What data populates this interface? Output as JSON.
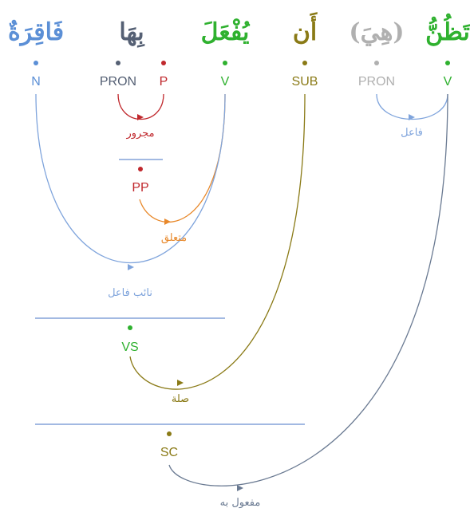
{
  "colors": {
    "noun": "#5b8fd6",
    "pronoun": "#556074",
    "preposition": "#c0282d",
    "verb": "#2fb12f",
    "subordinate": "#8a7a16",
    "hidden": "#b0b0b0",
    "edge_fail": "#7fa4dc",
    "edge_majrur": "#c0282d",
    "edge_mutaallaq": "#e8882a",
    "edge_naib": "#7fa4dc",
    "edge_sila": "#8a7a16",
    "edge_maful": "#6a7a92",
    "bar": "#6a8fd0"
  },
  "words": [
    {
      "id": "w1",
      "text": "تَظُنُّ",
      "tag": "V",
      "color": "verb"
    },
    {
      "id": "w2",
      "text": "(هِيَ)",
      "tag": "PRON",
      "color": "hidden"
    },
    {
      "id": "w3",
      "text": "أَن",
      "tag": "SUB",
      "color": "subordinate"
    },
    {
      "id": "w4",
      "text": "يُفْعَلَ",
      "tag": "V",
      "color": "verb"
    },
    {
      "id": "w5",
      "text": "بِهَا",
      "tag_p": "P",
      "tag_pron": "PRON",
      "color_p": "preposition",
      "color_pron": "pronoun"
    },
    {
      "id": "w6",
      "text": "فَاقِرَةٌ",
      "tag": "N",
      "color": "noun"
    }
  ],
  "phrases": {
    "pp": "PP",
    "vs": "VS",
    "sc": "SC"
  },
  "relations": {
    "fail": "فاعل",
    "majrur": "مجرور",
    "mutaallaq": "متعلق",
    "naib_fail": "نائب فاعل",
    "sila": "صلة",
    "maful_bihi": "مفعول به"
  }
}
